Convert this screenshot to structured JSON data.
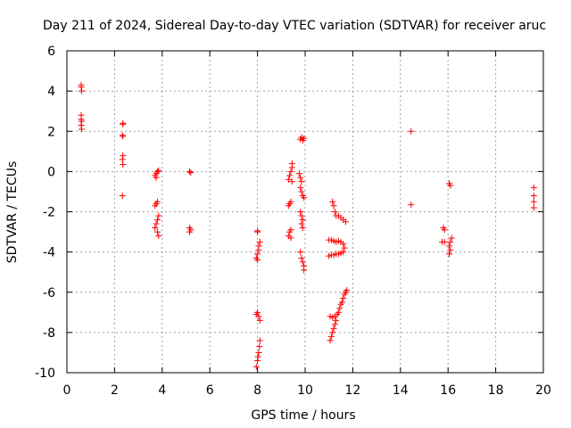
{
  "chart_data": {
    "type": "scatter",
    "title": "Day 211 of 2024, Sidereal Day-to-day VTEC variation (SDTVAR) for receiver aruc",
    "xlabel": "GPS time / hours",
    "ylabel": "SDTVAR / TECUs",
    "xlim": [
      0,
      20
    ],
    "ylim": [
      -10,
      6
    ],
    "xticks": [
      0,
      2,
      4,
      6,
      8,
      10,
      12,
      14,
      16,
      18,
      20
    ],
    "yticks": [
      -10,
      -8,
      -6,
      -4,
      -2,
      0,
      2,
      4,
      6
    ],
    "grid": true,
    "marker": "plus",
    "color": "#ff0000",
    "series": [
      {
        "name": "SDTVAR",
        "points": [
          [
            0.6,
            4.3
          ],
          [
            0.6,
            4.2
          ],
          [
            0.62,
            4.0
          ],
          [
            0.6,
            2.8
          ],
          [
            0.6,
            2.6
          ],
          [
            0.62,
            2.5
          ],
          [
            0.6,
            2.3
          ],
          [
            0.62,
            2.1
          ],
          [
            2.35,
            2.4
          ],
          [
            2.35,
            2.35
          ],
          [
            2.33,
            1.8
          ],
          [
            2.35,
            1.75
          ],
          [
            2.35,
            0.8
          ],
          [
            2.33,
            0.6
          ],
          [
            2.35,
            0.35
          ],
          [
            2.33,
            -1.2
          ],
          [
            3.8,
            0.0
          ],
          [
            3.75,
            -0.1
          ],
          [
            3.7,
            -0.2
          ],
          [
            3.75,
            -0.3
          ],
          [
            3.85,
            0.05
          ],
          [
            3.8,
            -1.5
          ],
          [
            3.75,
            -1.6
          ],
          [
            3.7,
            -1.7
          ],
          [
            3.85,
            -2.2
          ],
          [
            3.8,
            -2.4
          ],
          [
            3.75,
            -2.6
          ],
          [
            3.7,
            -2.8
          ],
          [
            3.8,
            -3.0
          ],
          [
            3.85,
            -3.2
          ],
          [
            5.15,
            0.0
          ],
          [
            5.2,
            -0.05
          ],
          [
            5.15,
            -2.8
          ],
          [
            5.2,
            -2.9
          ],
          [
            5.15,
            -3.0
          ],
          [
            8.0,
            -2.95
          ],
          [
            8.0,
            -3.0
          ],
          [
            8.1,
            -3.5
          ],
          [
            8.05,
            -3.7
          ],
          [
            8.05,
            -3.9
          ],
          [
            8.0,
            -4.1
          ],
          [
            7.95,
            -4.3
          ],
          [
            8.0,
            -4.4
          ],
          [
            8.0,
            -7.0
          ],
          [
            7.95,
            -7.1
          ],
          [
            8.05,
            -7.2
          ],
          [
            8.1,
            -7.4
          ],
          [
            8.1,
            -8.4
          ],
          [
            8.08,
            -8.7
          ],
          [
            8.05,
            -9.0
          ],
          [
            8.02,
            -9.2
          ],
          [
            8.0,
            -9.4
          ],
          [
            7.95,
            -9.7
          ],
          [
            9.45,
            0.4
          ],
          [
            9.45,
            0.2
          ],
          [
            9.4,
            0.0
          ],
          [
            9.35,
            -0.2
          ],
          [
            9.3,
            -0.4
          ],
          [
            9.45,
            -0.5
          ],
          [
            9.4,
            -1.5
          ],
          [
            9.35,
            -1.6
          ],
          [
            9.3,
            -1.7
          ],
          [
            9.4,
            -2.9
          ],
          [
            9.35,
            -3.0
          ],
          [
            9.3,
            -3.2
          ],
          [
            9.4,
            -3.3
          ],
          [
            9.85,
            1.7
          ],
          [
            9.8,
            1.6
          ],
          [
            9.9,
            1.55
          ],
          [
            9.95,
            1.65
          ],
          [
            9.75,
            -0.1
          ],
          [
            9.8,
            -0.3
          ],
          [
            9.85,
            -0.5
          ],
          [
            9.8,
            -0.8
          ],
          [
            9.85,
            -1.0
          ],
          [
            9.9,
            -1.2
          ],
          [
            9.95,
            -1.3
          ],
          [
            9.8,
            -2.0
          ],
          [
            9.85,
            -2.2
          ],
          [
            9.9,
            -2.4
          ],
          [
            9.85,
            -2.6
          ],
          [
            9.9,
            -2.8
          ],
          [
            9.8,
            -4.0
          ],
          [
            9.85,
            -4.3
          ],
          [
            9.9,
            -4.5
          ],
          [
            9.95,
            -4.7
          ],
          [
            9.95,
            -4.9
          ],
          [
            11.15,
            -1.5
          ],
          [
            11.2,
            -1.7
          ],
          [
            11.25,
            -2.0
          ],
          [
            11.3,
            -2.2
          ],
          [
            11.4,
            -2.2
          ],
          [
            11.5,
            -2.3
          ],
          [
            11.6,
            -2.4
          ],
          [
            11.7,
            -2.5
          ],
          [
            11.0,
            -3.4
          ],
          [
            11.1,
            -3.4
          ],
          [
            11.2,
            -3.45
          ],
          [
            11.3,
            -3.5
          ],
          [
            11.4,
            -3.45
          ],
          [
            11.5,
            -3.5
          ],
          [
            11.6,
            -3.6
          ],
          [
            11.65,
            -3.8
          ],
          [
            11.6,
            -4.0
          ],
          [
            11.5,
            -4.05
          ],
          [
            11.4,
            -4.1
          ],
          [
            11.3,
            -4.1
          ],
          [
            11.2,
            -4.15
          ],
          [
            11.1,
            -4.15
          ],
          [
            11.0,
            -4.2
          ],
          [
            11.75,
            -5.9
          ],
          [
            11.7,
            -6.0
          ],
          [
            11.65,
            -6.1
          ],
          [
            11.6,
            -6.3
          ],
          [
            11.55,
            -6.5
          ],
          [
            11.5,
            -6.6
          ],
          [
            11.45,
            -6.8
          ],
          [
            11.4,
            -7.0
          ],
          [
            11.35,
            -7.1
          ],
          [
            11.25,
            -7.2
          ],
          [
            11.15,
            -7.25
          ],
          [
            11.05,
            -7.2
          ],
          [
            11.3,
            -7.4
          ],
          [
            11.25,
            -7.6
          ],
          [
            11.2,
            -7.8
          ],
          [
            11.15,
            -8.0
          ],
          [
            11.1,
            -8.2
          ],
          [
            11.05,
            -8.4
          ],
          [
            14.45,
            2.0
          ],
          [
            14.45,
            -1.65
          ],
          [
            15.8,
            -2.8
          ],
          [
            15.85,
            -2.9
          ],
          [
            15.75,
            -3.5
          ],
          [
            15.85,
            -3.5
          ],
          [
            16.05,
            -0.6
          ],
          [
            16.1,
            -0.7
          ],
          [
            16.15,
            -3.3
          ],
          [
            16.1,
            -3.5
          ],
          [
            16.05,
            -3.7
          ],
          [
            16.1,
            -3.9
          ],
          [
            16.05,
            -4.1
          ],
          [
            19.6,
            -0.8
          ],
          [
            19.6,
            -1.2
          ],
          [
            19.6,
            -1.5
          ],
          [
            19.6,
            -1.8
          ]
        ]
      }
    ]
  }
}
